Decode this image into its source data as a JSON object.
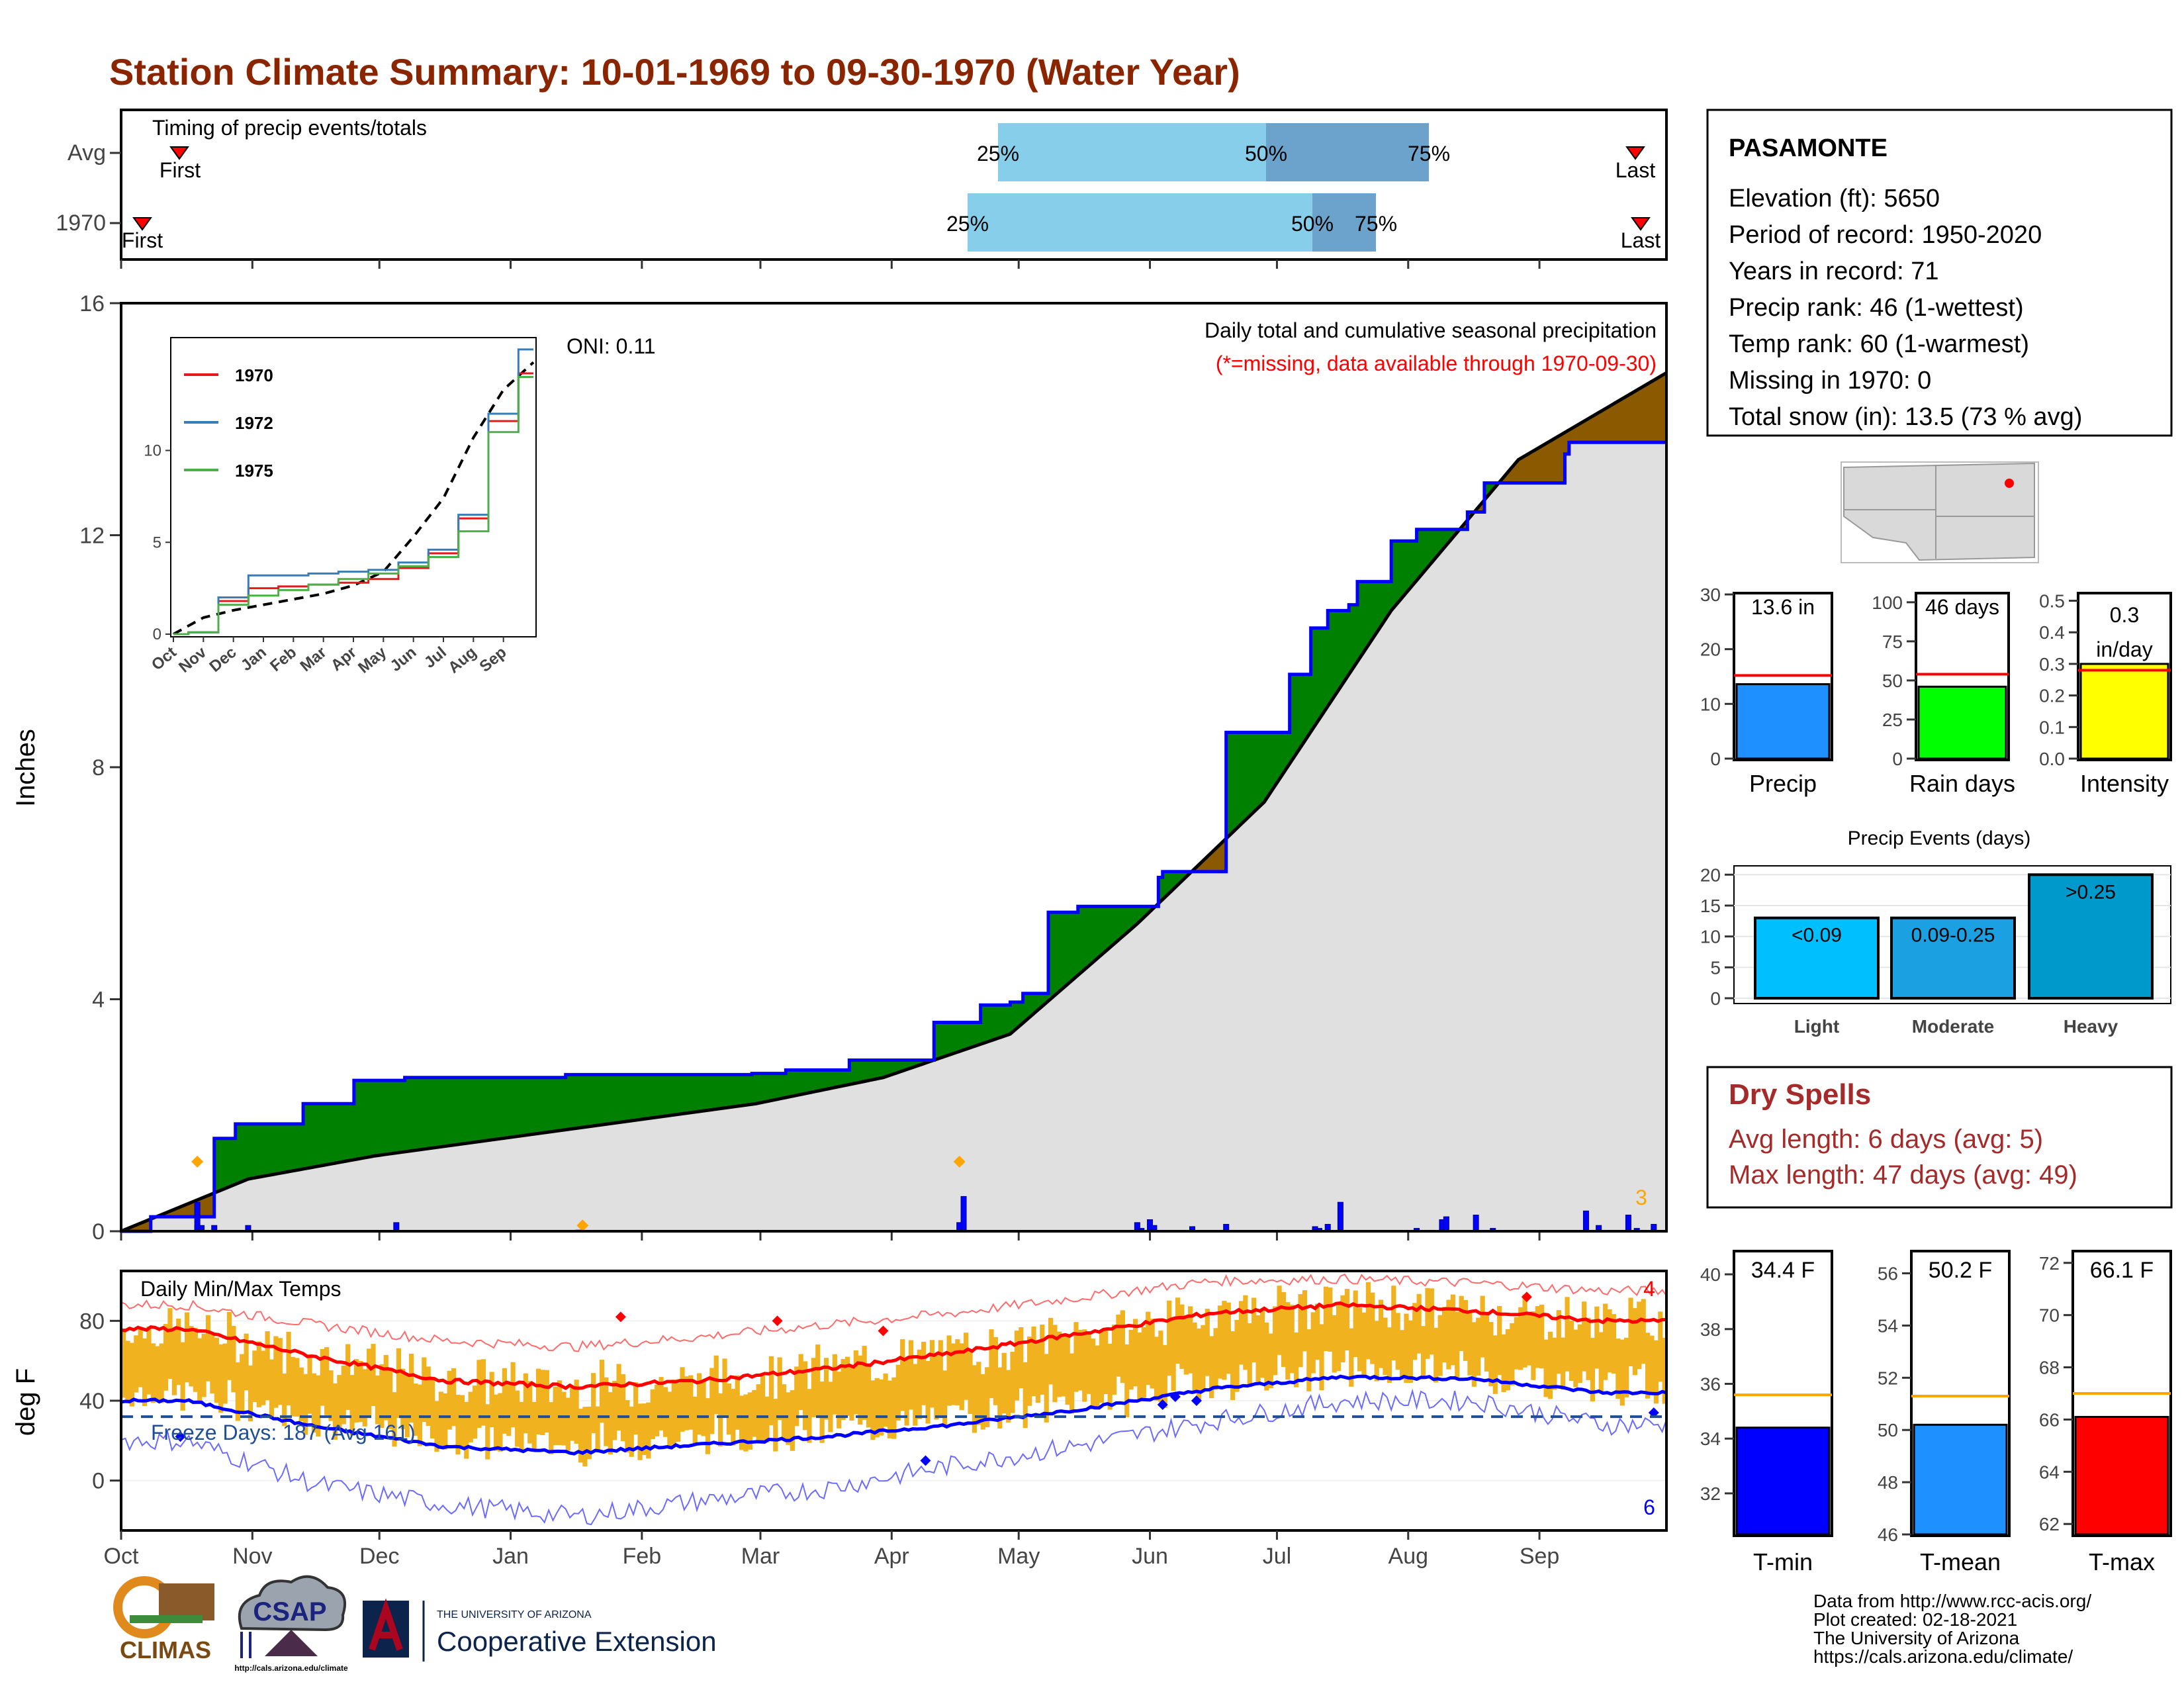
{
  "title": "Station Climate Summary: 10-01-1969 to 09-30-1970 (Water Year)",
  "colors": {
    "title": "#8B2500",
    "bar_light": "#87CEEB",
    "bar_dark": "#6BA3CC",
    "green": "#008000",
    "brown": "#8B5A00",
    "climo_fill": "#E0E0E0",
    "daily_bar": "#0000FF",
    "temp_bar": "#F0B21F",
    "tmax": "#FF0000",
    "tmin": "#0000FF",
    "dry": "#A52A2A",
    "precip_bar": "#1E90FF",
    "rain_bar": "#00FF00",
    "int_bar": "#FFFF00",
    "ev_light": "#00BFFF",
    "ev_mod": "#1BA1E2",
    "ev_heavy": "#0099CC",
    "tmin_bar": "#0000FF",
    "tmean_bar": "#1E90FF",
    "tmax_bar": "#FF0000",
    "avg_line_orange": "#FFA500"
  },
  "timing": {
    "label": "Timing of precip events/totals",
    "rows": [
      "Avg",
      "1970"
    ],
    "pct": [
      "25%",
      "50%",
      "75%"
    ],
    "first": "First",
    "last": "Last"
  },
  "station": {
    "name": "PASAMONTE",
    "lines": [
      "Elevation (ft): 5650",
      "Period of record: 1950-2020",
      "Years in record: 71",
      "Precip rank: 46 (1-wettest)",
      "Temp rank: 60 (1-warmest)",
      "Missing in 1970: 0",
      "Total snow (in): 13.5 (73 % avg)"
    ]
  },
  "precip_panel": {
    "subtitle": "Daily total and cumulative seasonal precipitation",
    "missing_note": "(*=missing, data available through 1970-09-30)",
    "oni": "ONI: 0.11",
    "ylabel": "Inches",
    "corner_count": "3",
    "analog_legend": [
      "1970",
      "1972",
      "1975"
    ]
  },
  "temp_panel": {
    "label": "Daily Min/Max Temps",
    "ylabel": "deg F",
    "freeze": "Freeze Days: 187 (Avg 161)",
    "count_hi": "4",
    "count_lo": "6"
  },
  "months": [
    "Oct",
    "Nov",
    "Dec",
    "Jan",
    "Feb",
    "Mar",
    "Apr",
    "May",
    "Jun",
    "Jul",
    "Aug",
    "Sep"
  ],
  "summary_bars": {
    "precip": {
      "label": "Precip",
      "value_text": "13.6 in",
      "value": 13.6,
      "avg": 15.2,
      "ymax": 30
    },
    "rain_days": {
      "label": "Rain days",
      "value_text": "46 days",
      "value": 46,
      "avg": 54,
      "ymax": 100
    },
    "intensity": {
      "label": "Intensity",
      "value_text_1": "0.3",
      "value_text_2": "in/day",
      "value": 0.3,
      "avg": 0.28,
      "ymax": 0.5
    }
  },
  "events": {
    "title": "Precip Events (days)",
    "categories": [
      "Light",
      "Moderate",
      "Heavy"
    ],
    "labels": [
      "<0.09",
      "0.09-0.25",
      ">0.25"
    ],
    "values": [
      13,
      13,
      20
    ]
  },
  "dry_spells": {
    "title": "Dry Spells",
    "avg_length": "Avg length: 6 days (avg: 5)",
    "max_length": "Max length: 47 days (avg: 49)"
  },
  "temp_bars": {
    "tmin": {
      "label": "T-min",
      "value_text": "34.4 F",
      "value": 34.4,
      "avg": 35.6
    },
    "tmean": {
      "label": "T-mean",
      "value_text": "50.2 F",
      "value": 50.2,
      "avg": 51.3
    },
    "tmax": {
      "label": "T-max",
      "value_text": "66.1 F",
      "value": 66.1,
      "avg": 67.0
    }
  },
  "logos": {
    "climas": "CLIMAS",
    "csap": "CSAP",
    "csap_url": "http://cals.arizona.edu/climate",
    "ua_small": "THE UNIVERSITY OF ARIZONA",
    "ua_big": "Cooperative Extension"
  },
  "credits": [
    "Data from http://www.rcc-acis.org/",
    "Plot created: 02-18-2021",
    "The University of Arizona",
    "https://cals.arizona.edu/climate/"
  ],
  "chart_data": [
    {
      "type": "area",
      "name": "cumulative precipitation",
      "xlabel": "",
      "ylabel": "Inches",
      "ylim": [
        0,
        16
      ],
      "yticks": [
        0,
        4,
        8,
        12,
        16
      ],
      "x_months": [
        "Oct",
        "Nov",
        "Dec",
        "Jan",
        "Feb",
        "Mar",
        "Apr",
        "May",
        "Jun",
        "Jul",
        "Aug",
        "Sep"
      ],
      "observed_cumulative": {
        "day": [
          0,
          7,
          15,
          22,
          27,
          43,
          53,
          55,
          67,
          105,
          149,
          157,
          172,
          192,
          203,
          210,
          213,
          219,
          226,
          245,
          246,
          261,
          276,
          281,
          285,
          290,
          292,
          300,
          306,
          318,
          322,
          341,
          342,
          363
        ],
        "in": [
          0,
          0.25,
          0.25,
          1.6,
          1.85,
          2.2,
          2.2,
          2.6,
          2.65,
          2.7,
          2.72,
          2.78,
          2.95,
          3.6,
          3.9,
          3.95,
          4.1,
          5.5,
          5.6,
          6.1,
          6.2,
          8.6,
          9.6,
          10.4,
          10.7,
          10.8,
          11.2,
          11.9,
          12.1,
          12.4,
          12.9,
          13.4,
          13.6,
          13.6
        ]
      },
      "climo_cumulative": {
        "day": [
          0,
          30,
          60,
          90,
          120,
          150,
          180,
          210,
          240,
          270,
          300,
          330,
          365
        ],
        "in": [
          0,
          0.9,
          1.3,
          1.6,
          1.9,
          2.2,
          2.65,
          3.4,
          5.3,
          7.4,
          10.7,
          13.3,
          14.8
        ]
      },
      "daily_precip_days": [
        18,
        18,
        19,
        22,
        30,
        65,
        108,
        198,
        199,
        240,
        241,
        243,
        244,
        253,
        261,
        282,
        283,
        285,
        288,
        306,
        312,
        313,
        320,
        324,
        346,
        349,
        356,
        358,
        362
      ],
      "daily_precip_in": [
        0.1,
        0.5,
        0.1,
        0.1,
        0.1,
        0.15,
        0.02,
        0.15,
        0.6,
        0.15,
        0.05,
        0.2,
        0.1,
        0.08,
        0.12,
        0.08,
        0.05,
        0.12,
        0.5,
        0.05,
        0.2,
        0.25,
        0.28,
        0.05,
        0.35,
        0.1,
        0.28,
        0.05,
        0.12
      ]
    },
    {
      "type": "line",
      "name": "analog years inset",
      "ylim": [
        0,
        16
      ],
      "yticks": [
        0,
        5,
        10
      ],
      "x": [
        "Oct",
        "Nov",
        "Dec",
        "Jan",
        "Feb",
        "Mar",
        "Apr",
        "May",
        "Jun",
        "Jul",
        "Aug",
        "Sep"
      ],
      "series": [
        {
          "name": "1970",
          "values": [
            0.1,
            1.8,
            2.5,
            2.6,
            2.7,
            2.8,
            3.0,
            3.6,
            4.4,
            6.3,
            11.6,
            14.2
          ]
        },
        {
          "name": "1972",
          "values": [
            0.1,
            2.0,
            3.2,
            3.2,
            3.3,
            3.4,
            3.5,
            3.9,
            4.6,
            6.5,
            12.0,
            15.5
          ]
        },
        {
          "name": "1975",
          "values": [
            0.1,
            1.6,
            2.1,
            2.4,
            2.7,
            3.0,
            3.3,
            3.7,
            4.2,
            5.6,
            11.0,
            14.0
          ]
        }
      ]
    },
    {
      "type": "bar",
      "name": "daily min max temps",
      "ylabel": "deg F",
      "ylim": [
        -25,
        105
      ],
      "yticks": [
        0,
        40,
        80
      ],
      "x_months": [
        "Oct",
        "Nov",
        "Dec",
        "Jan",
        "Feb",
        "Mar",
        "Apr",
        "May",
        "Jun",
        "Jul",
        "Aug",
        "Sep"
      ],
      "freeze_line": 32,
      "avg_tmax_monthly": [
        76,
        62,
        50,
        47,
        50,
        56,
        64,
        74,
        84,
        88,
        85,
        80
      ],
      "avg_tmin_monthly": [
        40,
        27,
        17,
        14,
        18,
        22,
        28,
        36,
        46,
        52,
        51,
        44
      ],
      "rec_high_monthly": [
        88,
        78,
        70,
        67,
        72,
        78,
        84,
        92,
        100,
        101,
        99,
        95
      ],
      "rec_low_monthly": [
        20,
        -2,
        -12,
        -18,
        -10,
        -4,
        8,
        18,
        30,
        40,
        40,
        28
      ]
    },
    {
      "type": "bar",
      "name": "precip events",
      "categories": [
        "Light",
        "Moderate",
        "Heavy"
      ],
      "values": [
        13,
        13,
        20
      ],
      "ylim": [
        0,
        21
      ]
    }
  ]
}
